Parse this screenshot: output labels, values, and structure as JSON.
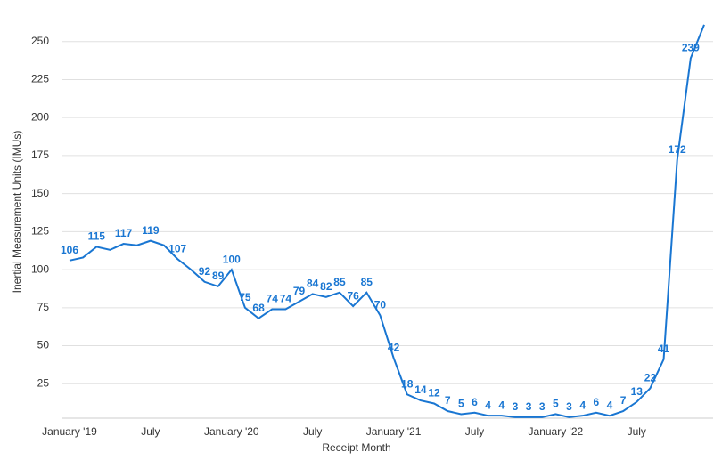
{
  "chart_data": {
    "type": "line",
    "x_label": "Receipt Month",
    "y_label": "Inertial Measurement Units (IMUs)",
    "categories": [
      "January '19",
      null,
      null,
      null,
      null,
      null,
      "July",
      null,
      null,
      null,
      null,
      null,
      "January '20",
      null,
      null,
      null,
      null,
      null,
      "July",
      null,
      null,
      null,
      null,
      null,
      "January '21",
      null,
      null,
      null,
      null,
      null,
      "July",
      null,
      null,
      null,
      null,
      null,
      "January '22",
      null,
      null,
      null,
      null,
      null,
      "July",
      null,
      null,
      null,
      null,
      null
    ],
    "values": [
      106,
      108,
      115,
      113,
      117,
      116,
      119,
      116,
      107,
      100,
      92,
      89,
      100,
      75,
      68,
      74,
      74,
      79,
      84,
      82,
      85,
      76,
      85,
      70,
      42,
      18,
      14,
      12,
      7,
      5,
      6,
      4,
      4,
      3,
      3,
      3,
      5,
      3,
      4,
      6,
      4,
      7,
      13,
      22,
      41,
      172,
      239,
      261
    ],
    "value_labels": [
      "106",
      null,
      "115",
      null,
      "117",
      null,
      "119",
      null,
      "107",
      null,
      "92",
      "89",
      "100",
      "75",
      "68",
      "74",
      "74",
      "79",
      "84",
      "82",
      "85",
      "76",
      "85",
      "70",
      "42",
      "18",
      "14",
      "12",
      "7",
      "5",
      "6",
      "4",
      "4",
      "3",
      "3",
      "3",
      "5",
      "3",
      "4",
      "6",
      "4",
      "7",
      "13",
      "22",
      "41",
      "172",
      "239",
      null
    ],
    "color": "#1976d2",
    "ylim": [
      0,
      275
    ],
    "yticks": [
      25,
      50,
      75,
      100,
      125,
      150,
      175,
      200,
      225,
      250
    ],
    "grid": true
  }
}
